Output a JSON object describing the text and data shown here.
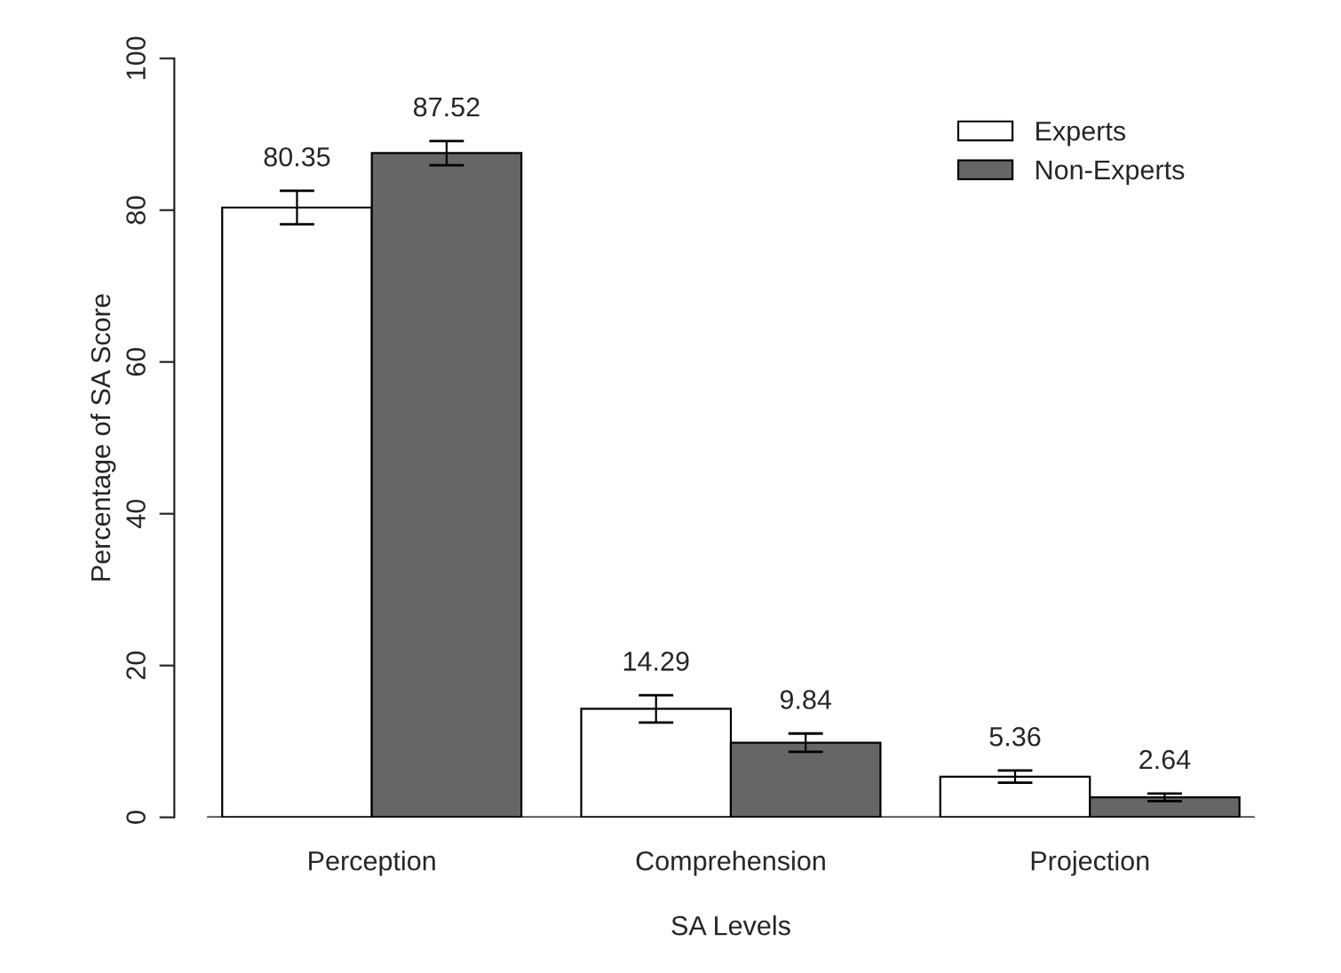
{
  "chart_data": {
    "type": "bar",
    "xlabel": "SA Levels",
    "ylabel": "Percentage of SA Score",
    "categories": [
      "Perception",
      "Comprehension",
      "Projection"
    ],
    "series": [
      {
        "name": "Experts",
        "color": "#ffffff",
        "values": [
          80.35,
          14.29,
          5.36
        ],
        "errors": [
          2.2,
          1.8,
          0.8
        ]
      },
      {
        "name": "Non-Experts",
        "color": "#666666",
        "values": [
          87.52,
          9.84,
          2.64
        ],
        "errors": [
          1.6,
          1.2,
          0.5
        ]
      }
    ],
    "data_labels": true,
    "ylim": [
      0,
      100
    ],
    "yticks": [
      0,
      20,
      40,
      60,
      80,
      100
    ],
    "grid": false,
    "legend": "top right"
  }
}
